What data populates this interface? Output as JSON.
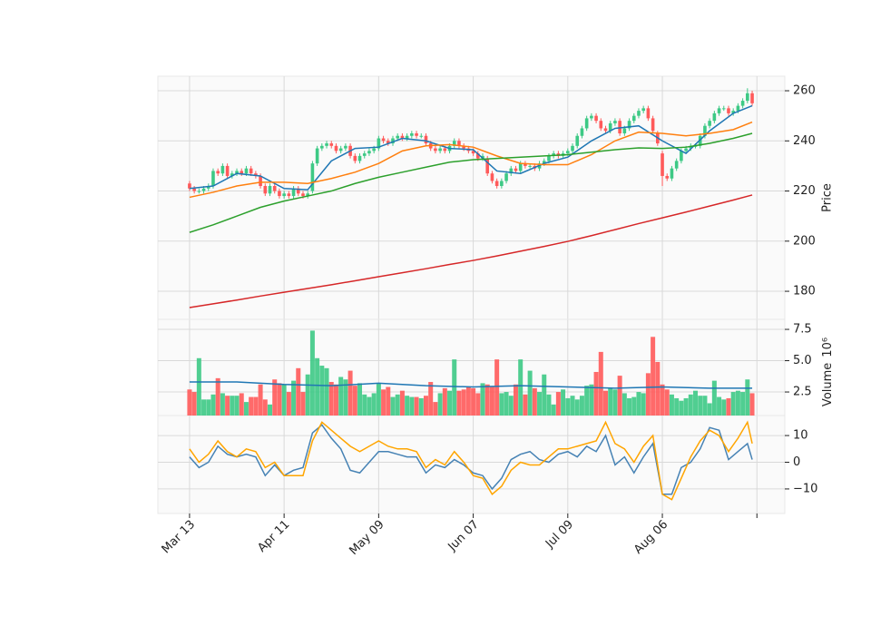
{
  "chart_data": {
    "type": "candlestick",
    "grid": true,
    "xlim": [
      -6.7,
      125.9
    ],
    "xticks": [
      {
        "value": 0,
        "label": "Mar 13"
      },
      {
        "value": 20,
        "label": "Apr 11"
      },
      {
        "value": 40,
        "label": "May 09"
      },
      {
        "value": 60,
        "label": "Jun 07"
      },
      {
        "value": 80,
        "label": "Jul 09"
      },
      {
        "value": 100,
        "label": "Aug 06"
      },
      {
        "value": 120,
        "label": null
      }
    ],
    "price": {
      "ylabel": "Price",
      "ylim": [
        168.8,
        265.8
      ],
      "yticks": [
        180,
        200,
        220,
        240,
        260
      ],
      "up_color": "#3dc985",
      "down_color": "#ff5a5a",
      "open": [
        223,
        221,
        220,
        220,
        221,
        222,
        228,
        227,
        230,
        226,
        227,
        228,
        227,
        229,
        227,
        226,
        222,
        219,
        222,
        220,
        218,
        219,
        218,
        221,
        219,
        218,
        220,
        231,
        237,
        238,
        239,
        238,
        236,
        237,
        238,
        234,
        232,
        234,
        235,
        236,
        237,
        241,
        240,
        239,
        241,
        242,
        241,
        242,
        243,
        242,
        242,
        239,
        237,
        236,
        237,
        236,
        238,
        240,
        238,
        237,
        236,
        235,
        233,
        233,
        227,
        224,
        222,
        224,
        227,
        229,
        228,
        231,
        230,
        230,
        229,
        231,
        232,
        234,
        235,
        234,
        235,
        236,
        238,
        242,
        245,
        249,
        250,
        248,
        245,
        244,
        247,
        248,
        243,
        245,
        248,
        250,
        252,
        253,
        249,
        243,
        235,
        226,
        225,
        229,
        232,
        236,
        237,
        238,
        238,
        242,
        246,
        248,
        251,
        253,
        253,
        251,
        252,
        254,
        256,
        259
      ],
      "high": [
        224,
        222,
        221,
        222,
        223,
        229,
        229,
        231,
        231,
        228,
        229,
        229,
        230,
        230,
        228,
        227,
        223,
        223,
        223,
        221,
        220,
        220,
        222,
        222,
        220,
        220,
        232,
        238,
        239,
        240,
        240,
        239,
        238,
        239,
        239,
        235,
        235,
        236,
        237,
        238,
        242,
        242,
        241,
        242,
        243,
        243,
        243,
        244,
        244,
        243,
        243,
        240,
        238,
        238,
        238,
        239,
        241,
        241,
        239,
        238,
        237,
        236,
        235,
        234,
        228,
        225,
        225,
        228,
        230,
        230,
        232,
        232,
        231,
        231,
        232,
        233,
        235,
        236,
        236,
        236,
        237,
        239,
        243,
        246,
        250,
        251,
        251,
        249,
        246,
        248,
        249,
        249,
        246,
        249,
        251,
        253,
        254,
        254,
        250,
        244,
        236,
        227,
        230,
        233,
        237,
        238,
        239,
        239,
        243,
        247,
        249,
        252,
        254,
        254,
        254,
        253,
        255,
        257,
        261,
        260
      ],
      "low": [
        220,
        219,
        219,
        219,
        220,
        221,
        226,
        226,
        225,
        225,
        226,
        226,
        226,
        226,
        225,
        221,
        218,
        218,
        219,
        217,
        217,
        217,
        217,
        218,
        217,
        217,
        219,
        230,
        236,
        237,
        237,
        235,
        235,
        236,
        233,
        231,
        231,
        233,
        234,
        235,
        236,
        239,
        238,
        238,
        240,
        240,
        240,
        241,
        241,
        241,
        238,
        236,
        235,
        235,
        235,
        235,
        237,
        237,
        236,
        235,
        234,
        232,
        232,
        226,
        223,
        221,
        221,
        223,
        226,
        227,
        227,
        229,
        229,
        228,
        228,
        230,
        231,
        233,
        233,
        233,
        234,
        235,
        237,
        241,
        244,
        248,
        247,
        244,
        243,
        243,
        246,
        242,
        242,
        244,
        247,
        249,
        251,
        248,
        243,
        238,
        222,
        224,
        224,
        228,
        231,
        235,
        236,
        237,
        237,
        241,
        245,
        247,
        250,
        252,
        250,
        250,
        251,
        253,
        255,
        254
      ],
      "close": [
        221,
        220,
        220,
        221,
        222,
        228,
        227,
        230,
        226,
        227,
        228,
        227,
        229,
        227,
        226,
        222,
        219,
        222,
        220,
        218,
        219,
        218,
        221,
        219,
        218,
        219,
        231,
        237,
        238,
        239,
        238,
        236,
        237,
        238,
        234,
        232,
        234,
        235,
        236,
        237,
        241,
        240,
        239,
        241,
        242,
        241,
        242,
        243,
        242,
        242,
        239,
        237,
        236,
        237,
        236,
        238,
        240,
        238,
        237,
        236,
        235,
        233,
        234,
        227,
        224,
        222,
        224,
        227,
        229,
        228,
        231,
        230,
        230,
        229,
        231,
        232,
        234,
        235,
        234,
        235,
        236,
        238,
        242,
        245,
        249,
        250,
        248,
        245,
        244,
        247,
        248,
        243,
        245,
        248,
        250,
        252,
        253,
        249,
        244,
        239,
        226,
        225,
        229,
        232,
        236,
        237,
        238,
        238,
        242,
        246,
        248,
        251,
        253,
        253,
        251,
        252,
        254,
        256,
        259,
        255
      ],
      "moving_averages": [
        {
          "color": "#1f77b4",
          "x": [
            0,
            5,
            10,
            15,
            20,
            25,
            30,
            35,
            40,
            45,
            50,
            55,
            60,
            65,
            70,
            75,
            80,
            85,
            90,
            95,
            100,
            105,
            110,
            115,
            119
          ],
          "values": [
            221,
            222,
            227,
            226,
            221,
            220.5,
            232,
            237,
            237.5,
            241,
            240,
            237,
            236.5,
            228,
            227,
            231,
            233.5,
            240,
            245,
            246,
            240,
            235,
            244,
            251,
            254
          ]
        },
        {
          "color": "#ff7f0e",
          "x": [
            0,
            5,
            10,
            15,
            20,
            25,
            30,
            35,
            40,
            45,
            50,
            55,
            60,
            65,
            70,
            75,
            80,
            85,
            90,
            95,
            100,
            105,
            110,
            115,
            119
          ],
          "values": [
            217.5,
            219.5,
            222,
            223.5,
            223.5,
            223,
            225,
            227.5,
            231,
            236,
            238,
            238.5,
            237.5,
            234,
            231,
            230.5,
            230.5,
            234.5,
            240,
            243.5,
            243,
            242,
            243,
            244.5,
            247.5
          ]
        },
        {
          "color": "#2ca02c",
          "x": [
            0,
            5,
            10,
            15,
            20,
            25,
            30,
            35,
            40,
            45,
            50,
            55,
            60,
            65,
            70,
            75,
            80,
            85,
            90,
            95,
            100,
            105,
            110,
            115,
            119
          ],
          "values": [
            203.5,
            206.5,
            210,
            213.5,
            216,
            218,
            220,
            223,
            225.5,
            227.5,
            229.5,
            231.5,
            232.5,
            233,
            233.5,
            234,
            234.5,
            235.5,
            236.5,
            237.2,
            237,
            237.5,
            239,
            241,
            243
          ]
        },
        {
          "color": "#d62728",
          "x": [
            0,
            5,
            10,
            15,
            20,
            25,
            30,
            35,
            40,
            45,
            50,
            55,
            60,
            65,
            70,
            75,
            80,
            85,
            90,
            95,
            100,
            105,
            110,
            115,
            119
          ],
          "values": [
            173.5,
            175.0,
            176.5,
            178.1,
            179.6,
            181.1,
            182.6,
            184.2,
            185.8,
            187.4,
            189.0,
            190.7,
            192.3,
            194.1,
            196.0,
            197.9,
            199.9,
            202.2,
            204.6,
            207.0,
            209.3,
            211.6,
            214.0,
            216.4,
            218.4
          ]
        }
      ]
    },
    "volume": {
      "ylabel": "Volume",
      "offset": "10⁶",
      "ylim": [
        0.62,
        8.3
      ],
      "yticks": [
        2.5,
        {
          "value": 5,
          "label": "5.0"
        },
        7.5
      ],
      "values": [
        2.7,
        2.5,
        5.2,
        1.9,
        1.9,
        2.3,
        3.6,
        2.4,
        2.2,
        2.2,
        2.2,
        2.4,
        1.7,
        2.1,
        2.1,
        3.1,
        1.9,
        1.5,
        3.5,
        3.2,
        3.1,
        2.5,
        3.4,
        4.4,
        2.5,
        3.9,
        7.4,
        5.2,
        4.6,
        4.4,
        3.3,
        3.1,
        3.7,
        3.5,
        4.2,
        3.0,
        3.2,
        2.3,
        2.1,
        2.4,
        3.2,
        2.7,
        2.9,
        2.1,
        2.3,
        2.6,
        2.2,
        2.1,
        2.1,
        2.0,
        2.2,
        3.3,
        1.7,
        2.4,
        2.8,
        2.6,
        5.1,
        2.6,
        2.7,
        2.9,
        2.8,
        2.4,
        3.2,
        3.1,
        2.9,
        5.1,
        2.4,
        2.5,
        2.2,
        3.1,
        5.1,
        2.3,
        4.2,
        2.8,
        2.5,
        3.9,
        2.3,
        1.5,
        2.5,
        2.7,
        2.0,
        2.2,
        1.9,
        2.2,
        3.0,
        3.1,
        4.1,
        5.7,
        2.6,
        2.8,
        2.7,
        3.8,
        2.4,
        2.0,
        2.1,
        2.5,
        2.4,
        4.0,
        6.9,
        4.9,
        3.1,
        2.7,
        2.3,
        2.0,
        1.8,
        2.0,
        2.3,
        2.6,
        2.2,
        2.2,
        1.6,
        3.4,
        2.1,
        1.9,
        2.0,
        2.5,
        2.6,
        2.5,
        3.5,
        2.4
      ],
      "average": {
        "color": "#1f77b4",
        "x": [
          0,
          10,
          20,
          30,
          40,
          50,
          60,
          70,
          80,
          90,
          100,
          110,
          119
        ],
        "values": [
          3.3,
          3.3,
          3.1,
          3.0,
          3.2,
          3.0,
          2.9,
          3.0,
          2.9,
          2.8,
          2.9,
          2.8,
          2.8
        ]
      }
    },
    "oscillator": {
      "ylim": [
        -19.2,
        17.5
      ],
      "yticks": [
        {
          "value": -10,
          "label": "−10"
        },
        0,
        10
      ],
      "series": [
        {
          "color": "#4682b4",
          "x": [
            0,
            2,
            4,
            6,
            8,
            10,
            12,
            14,
            16,
            18,
            20,
            22,
            24,
            26,
            28,
            30,
            32,
            34,
            36,
            38,
            40,
            42,
            44,
            46,
            48,
            50,
            52,
            54,
            56,
            58,
            60,
            62,
            64,
            66,
            68,
            70,
            72,
            74,
            76,
            78,
            80,
            82,
            84,
            86,
            88,
            90,
            92,
            94,
            96,
            98,
            100,
            102,
            104,
            106,
            108,
            110,
            112,
            114,
            116,
            118,
            119
          ],
          "values": [
            2,
            -2,
            0,
            6,
            3,
            2,
            3,
            2,
            -5,
            -1,
            -5,
            -3,
            -2,
            11,
            14,
            9,
            5,
            -3,
            -4,
            0,
            4,
            4,
            3,
            2,
            2,
            -4,
            -1,
            -2,
            1,
            -1,
            -4,
            -5,
            -10,
            -6,
            1,
            3,
            4,
            1,
            0,
            3,
            4,
            2,
            6,
            4,
            10,
            -1,
            2,
            -4,
            2,
            7,
            -12,
            -12,
            -2,
            0,
            5,
            13,
            12,
            1,
            4,
            7,
            1
          ]
        },
        {
          "color": "#ffa500",
          "x": [
            0,
            2,
            4,
            6,
            8,
            10,
            12,
            14,
            16,
            18,
            20,
            22,
            24,
            26,
            28,
            30,
            32,
            34,
            36,
            38,
            40,
            42,
            44,
            46,
            48,
            50,
            52,
            54,
            56,
            58,
            60,
            62,
            64,
            66,
            68,
            70,
            72,
            74,
            76,
            78,
            80,
            82,
            84,
            86,
            88,
            90,
            92,
            94,
            96,
            98,
            100,
            102,
            104,
            106,
            108,
            110,
            112,
            114,
            116,
            118,
            119
          ],
          "values": [
            5,
            0,
            3,
            8,
            4,
            2,
            5,
            4,
            -2,
            0,
            -5,
            -5,
            -5,
            8,
            15,
            12,
            9,
            6,
            4,
            6,
            8,
            6,
            5,
            5,
            4,
            -2,
            1,
            -1,
            4,
            0,
            -5,
            -6,
            -12,
            -9,
            -3,
            0,
            -1,
            -1,
            2,
            5,
            5,
            6,
            7,
            8,
            15,
            7,
            5,
            0,
            6,
            10,
            -12,
            -14,
            -6,
            2,
            8,
            12,
            10,
            4,
            9,
            15,
            7
          ]
        }
      ]
    }
  }
}
